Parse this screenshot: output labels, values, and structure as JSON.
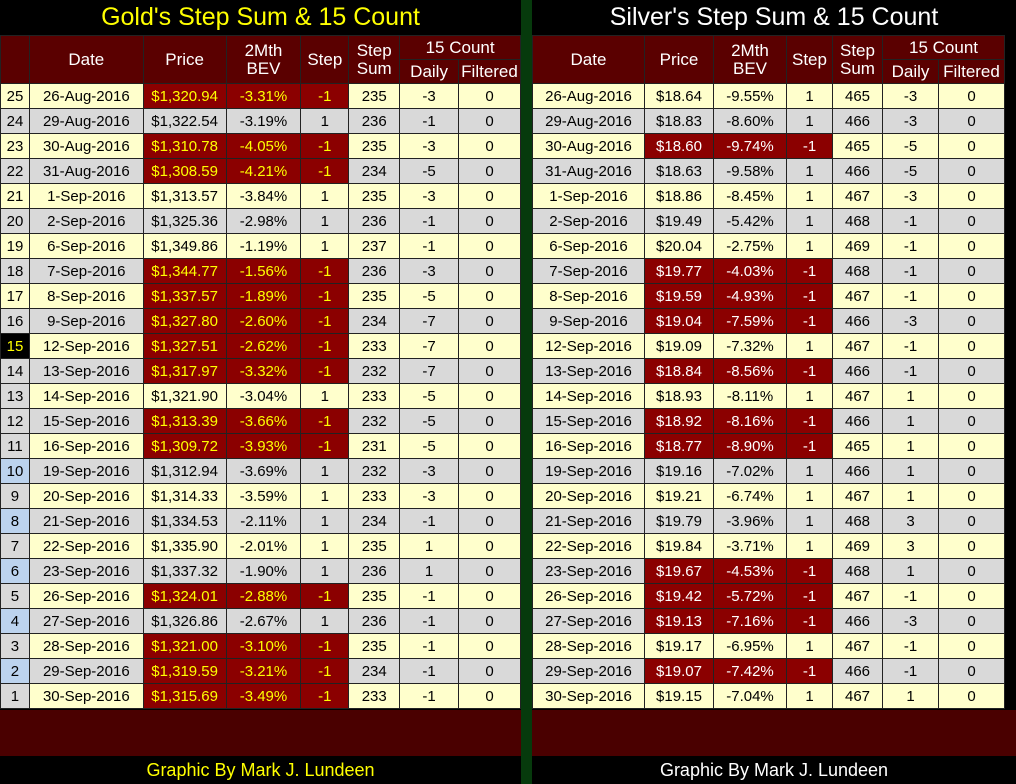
{
  "gold": {
    "title": "Gold's Step Sum & 15 Count",
    "credit": "Graphic By Mark J. Lundeen",
    "headers": {
      "date": "Date",
      "price": "Price",
      "bev1": "2Mth",
      "bev2": "BEV",
      "step": "Step",
      "stepsum1": "Step",
      "stepsum2": "Sum",
      "count": "15 Count",
      "daily": "Daily",
      "filtered": "Filtered"
    },
    "rows": [
      {
        "num": "25",
        "date": "26-Aug-2016",
        "price": "$1,320.94",
        "bev": "-3.31%",
        "step": "-1",
        "sum": "235",
        "daily": "-3",
        "filtered": "0"
      },
      {
        "num": "24",
        "date": "29-Aug-2016",
        "price": "$1,322.54",
        "bev": "-3.19%",
        "step": "1",
        "sum": "236",
        "daily": "-1",
        "filtered": "0"
      },
      {
        "num": "23",
        "date": "30-Aug-2016",
        "price": "$1,310.78",
        "bev": "-4.05%",
        "step": "-1",
        "sum": "235",
        "daily": "-3",
        "filtered": "0"
      },
      {
        "num": "22",
        "date": "31-Aug-2016",
        "price": "$1,308.59",
        "bev": "-4.21%",
        "step": "-1",
        "sum": "234",
        "daily": "-5",
        "filtered": "0"
      },
      {
        "num": "21",
        "date": "1-Sep-2016",
        "price": "$1,313.57",
        "bev": "-3.84%",
        "step": "1",
        "sum": "235",
        "daily": "-3",
        "filtered": "0"
      },
      {
        "num": "20",
        "date": "2-Sep-2016",
        "price": "$1,325.36",
        "bev": "-2.98%",
        "step": "1",
        "sum": "236",
        "daily": "-1",
        "filtered": "0"
      },
      {
        "num": "19",
        "date": "6-Sep-2016",
        "price": "$1,349.86",
        "bev": "-1.19%",
        "step": "1",
        "sum": "237",
        "daily": "-1",
        "filtered": "0"
      },
      {
        "num": "18",
        "date": "7-Sep-2016",
        "price": "$1,344.77",
        "bev": "-1.56%",
        "step": "-1",
        "sum": "236",
        "daily": "-3",
        "filtered": "0"
      },
      {
        "num": "17",
        "date": "8-Sep-2016",
        "price": "$1,337.57",
        "bev": "-1.89%",
        "step": "-1",
        "sum": "235",
        "daily": "-5",
        "filtered": "0"
      },
      {
        "num": "16",
        "date": "9-Sep-2016",
        "price": "$1,327.80",
        "bev": "-2.60%",
        "step": "-1",
        "sum": "234",
        "daily": "-7",
        "filtered": "0"
      },
      {
        "num": "15",
        "date": "12-Sep-2016",
        "price": "$1,327.51",
        "bev": "-2.62%",
        "step": "-1",
        "sum": "233",
        "daily": "-7",
        "filtered": "0"
      },
      {
        "num": "14",
        "date": "13-Sep-2016",
        "price": "$1,317.97",
        "bev": "-3.32%",
        "step": "-1",
        "sum": "232",
        "daily": "-7",
        "filtered": "0"
      },
      {
        "num": "13",
        "date": "14-Sep-2016",
        "price": "$1,321.90",
        "bev": "-3.04%",
        "step": "1",
        "sum": "233",
        "daily": "-5",
        "filtered": "0"
      },
      {
        "num": "12",
        "date": "15-Sep-2016",
        "price": "$1,313.39",
        "bev": "-3.66%",
        "step": "-1",
        "sum": "232",
        "daily": "-5",
        "filtered": "0"
      },
      {
        "num": "11",
        "date": "16-Sep-2016",
        "price": "$1,309.72",
        "bev": "-3.93%",
        "step": "-1",
        "sum": "231",
        "daily": "-5",
        "filtered": "0"
      },
      {
        "num": "10",
        "date": "19-Sep-2016",
        "price": "$1,312.94",
        "bev": "-3.69%",
        "step": "1",
        "sum": "232",
        "daily": "-3",
        "filtered": "0"
      },
      {
        "num": "9",
        "date": "20-Sep-2016",
        "price": "$1,314.33",
        "bev": "-3.59%",
        "step": "1",
        "sum": "233",
        "daily": "-3",
        "filtered": "0"
      },
      {
        "num": "8",
        "date": "21-Sep-2016",
        "price": "$1,334.53",
        "bev": "-2.11%",
        "step": "1",
        "sum": "234",
        "daily": "-1",
        "filtered": "0"
      },
      {
        "num": "7",
        "date": "22-Sep-2016",
        "price": "$1,335.90",
        "bev": "-2.01%",
        "step": "1",
        "sum": "235",
        "daily": "1",
        "filtered": "0"
      },
      {
        "num": "6",
        "date": "23-Sep-2016",
        "price": "$1,337.32",
        "bev": "-1.90%",
        "step": "1",
        "sum": "236",
        "daily": "1",
        "filtered": "0"
      },
      {
        "num": "5",
        "date": "26-Sep-2016",
        "price": "$1,324.01",
        "bev": "-2.88%",
        "step": "-1",
        "sum": "235",
        "daily": "-1",
        "filtered": "0"
      },
      {
        "num": "4",
        "date": "27-Sep-2016",
        "price": "$1,326.86",
        "bev": "-2.67%",
        "step": "1",
        "sum": "236",
        "daily": "-1",
        "filtered": "0"
      },
      {
        "num": "3",
        "date": "28-Sep-2016",
        "price": "$1,321.00",
        "bev": "-3.10%",
        "step": "-1",
        "sum": "235",
        "daily": "-1",
        "filtered": "0"
      },
      {
        "num": "2",
        "date": "29-Sep-2016",
        "price": "$1,319.59",
        "bev": "-3.21%",
        "step": "-1",
        "sum": "234",
        "daily": "-1",
        "filtered": "0"
      },
      {
        "num": "1",
        "date": "30-Sep-2016",
        "price": "$1,315.69",
        "bev": "-3.49%",
        "step": "-1",
        "sum": "233",
        "daily": "-1",
        "filtered": "0"
      }
    ]
  },
  "silver": {
    "title": "Silver's Step Sum & 15 Count",
    "credit": "Graphic By Mark J. Lundeen",
    "headers": {
      "date": "Date",
      "price": "Price",
      "bev1": "2Mth",
      "bev2": "BEV",
      "step": "Step",
      "stepsum1": "Step",
      "stepsum2": "Sum",
      "count": "15 Count",
      "daily": "Daily",
      "filtered": "Filtered"
    },
    "rows": [
      {
        "date": "26-Aug-2016",
        "price": "$18.64",
        "bev": "-9.55%",
        "step": "1",
        "sum": "465",
        "daily": "-3",
        "filtered": "0"
      },
      {
        "date": "29-Aug-2016",
        "price": "$18.83",
        "bev": "-8.60%",
        "step": "1",
        "sum": "466",
        "daily": "-3",
        "filtered": "0"
      },
      {
        "date": "30-Aug-2016",
        "price": "$18.60",
        "bev": "-9.74%",
        "step": "-1",
        "sum": "465",
        "daily": "-5",
        "filtered": "0"
      },
      {
        "date": "31-Aug-2016",
        "price": "$18.63",
        "bev": "-9.58%",
        "step": "1",
        "sum": "466",
        "daily": "-5",
        "filtered": "0"
      },
      {
        "date": "1-Sep-2016",
        "price": "$18.86",
        "bev": "-8.45%",
        "step": "1",
        "sum": "467",
        "daily": "-3",
        "filtered": "0"
      },
      {
        "date": "2-Sep-2016",
        "price": "$19.49",
        "bev": "-5.42%",
        "step": "1",
        "sum": "468",
        "daily": "-1",
        "filtered": "0"
      },
      {
        "date": "6-Sep-2016",
        "price": "$20.04",
        "bev": "-2.75%",
        "step": "1",
        "sum": "469",
        "daily": "-1",
        "filtered": "0"
      },
      {
        "date": "7-Sep-2016",
        "price": "$19.77",
        "bev": "-4.03%",
        "step": "-1",
        "sum": "468",
        "daily": "-1",
        "filtered": "0"
      },
      {
        "date": "8-Sep-2016",
        "price": "$19.59",
        "bev": "-4.93%",
        "step": "-1",
        "sum": "467",
        "daily": "-1",
        "filtered": "0"
      },
      {
        "date": "9-Sep-2016",
        "price": "$19.04",
        "bev": "-7.59%",
        "step": "-1",
        "sum": "466",
        "daily": "-3",
        "filtered": "0"
      },
      {
        "date": "12-Sep-2016",
        "price": "$19.09",
        "bev": "-7.32%",
        "step": "1",
        "sum": "467",
        "daily": "-1",
        "filtered": "0"
      },
      {
        "date": "13-Sep-2016",
        "price": "$18.84",
        "bev": "-8.56%",
        "step": "-1",
        "sum": "466",
        "daily": "-1",
        "filtered": "0"
      },
      {
        "date": "14-Sep-2016",
        "price": "$18.93",
        "bev": "-8.11%",
        "step": "1",
        "sum": "467",
        "daily": "1",
        "filtered": "0"
      },
      {
        "date": "15-Sep-2016",
        "price": "$18.92",
        "bev": "-8.16%",
        "step": "-1",
        "sum": "466",
        "daily": "1",
        "filtered": "0"
      },
      {
        "date": "16-Sep-2016",
        "price": "$18.77",
        "bev": "-8.90%",
        "step": "-1",
        "sum": "465",
        "daily": "1",
        "filtered": "0"
      },
      {
        "date": "19-Sep-2016",
        "price": "$19.16",
        "bev": "-7.02%",
        "step": "1",
        "sum": "466",
        "daily": "1",
        "filtered": "0"
      },
      {
        "date": "20-Sep-2016",
        "price": "$19.21",
        "bev": "-6.74%",
        "step": "1",
        "sum": "467",
        "daily": "1",
        "filtered": "0"
      },
      {
        "date": "21-Sep-2016",
        "price": "$19.79",
        "bev": "-3.96%",
        "step": "1",
        "sum": "468",
        "daily": "3",
        "filtered": "0"
      },
      {
        "date": "22-Sep-2016",
        "price": "$19.84",
        "bev": "-3.71%",
        "step": "1",
        "sum": "469",
        "daily": "3",
        "filtered": "0"
      },
      {
        "date": "23-Sep-2016",
        "price": "$19.67",
        "bev": "-4.53%",
        "step": "-1",
        "sum": "468",
        "daily": "1",
        "filtered": "0"
      },
      {
        "date": "26-Sep-2016",
        "price": "$19.42",
        "bev": "-5.72%",
        "step": "-1",
        "sum": "467",
        "daily": "-1",
        "filtered": "0"
      },
      {
        "date": "27-Sep-2016",
        "price": "$19.13",
        "bev": "-7.16%",
        "step": "-1",
        "sum": "466",
        "daily": "-3",
        "filtered": "0"
      },
      {
        "date": "28-Sep-2016",
        "price": "$19.17",
        "bev": "-6.95%",
        "step": "1",
        "sum": "467",
        "daily": "-1",
        "filtered": "0"
      },
      {
        "date": "29-Sep-2016",
        "price": "$19.07",
        "bev": "-7.42%",
        "step": "-1",
        "sum": "466",
        "daily": "-1",
        "filtered": "0"
      },
      {
        "date": "30-Sep-2016",
        "price": "$19.15",
        "bev": "-7.04%",
        "step": "1",
        "sum": "467",
        "daily": "1",
        "filtered": "0"
      }
    ]
  }
}
